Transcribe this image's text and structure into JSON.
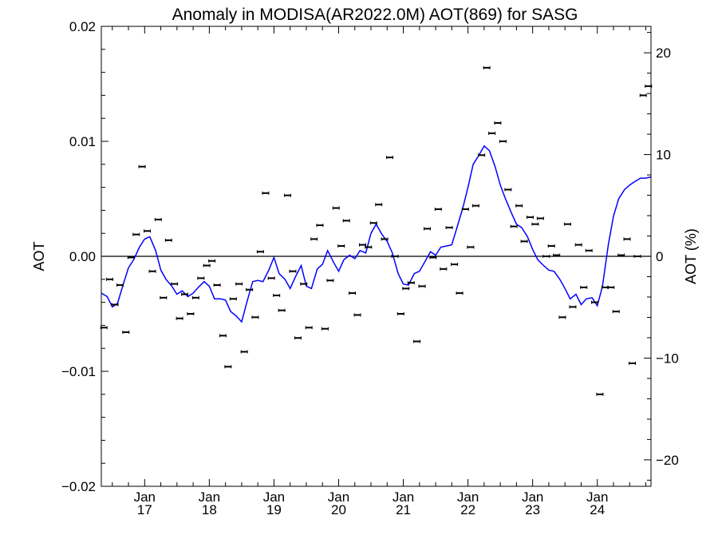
{
  "chart_data": {
    "type": "scatter",
    "title": "Anomaly in MODISA(AR2022.0M) AOT(869) for SASG",
    "ylabel": "AOT",
    "y2label": "AOT (%)",
    "xlabel": "",
    "ylim": [
      -0.02,
      0.02
    ],
    "y2lim": [
      -22.6,
      22.6
    ],
    "xlim": [
      2016.33,
      2024.83
    ],
    "grid": false,
    "yticks": [
      {
        "value": -0.02,
        "label": "−0.02"
      },
      {
        "value": -0.01,
        "label": "−0.01"
      },
      {
        "value": 0.0,
        "label": "0.00"
      },
      {
        "value": 0.01,
        "label": "0.01"
      },
      {
        "value": 0.02,
        "label": "0.02"
      }
    ],
    "y2ticks": [
      {
        "value": -20,
        "label": "−20"
      },
      {
        "value": -10,
        "label": "−10"
      },
      {
        "value": 0,
        "label": "0"
      },
      {
        "value": 10,
        "label": "10"
      },
      {
        "value": 20,
        "label": "20"
      }
    ],
    "xticks": [
      {
        "value": 2017,
        "month": "Jan",
        "year": "17"
      },
      {
        "value": 2018,
        "month": "Jan",
        "year": "18"
      },
      {
        "value": 2019,
        "month": "Jan",
        "year": "19"
      },
      {
        "value": 2020,
        "month": "Jan",
        "year": "20"
      },
      {
        "value": 2021,
        "month": "Jan",
        "year": "21"
      },
      {
        "value": 2022,
        "month": "Jan",
        "year": "22"
      },
      {
        "value": 2023,
        "month": "Jan",
        "year": "23"
      },
      {
        "value": 2024,
        "month": "Jan",
        "year": "24"
      }
    ],
    "series": [
      {
        "kind": "monthly-points",
        "color": "#000000",
        "x": [
          2016.37,
          2016.46,
          2016.54,
          2016.62,
          2016.71,
          2016.79,
          2016.87,
          2016.96,
          2017.04,
          2017.12,
          2017.21,
          2017.29,
          2017.37,
          2017.46,
          2017.54,
          2017.62,
          2017.71,
          2017.79,
          2017.87,
          2017.96,
          2018.04,
          2018.12,
          2018.21,
          2018.29,
          2018.37,
          2018.46,
          2018.54,
          2018.62,
          2018.71,
          2018.79,
          2018.87,
          2018.96,
          2019.04,
          2019.12,
          2019.21,
          2019.29,
          2019.37,
          2019.46,
          2019.54,
          2019.62,
          2019.71,
          2019.79,
          2019.87,
          2019.96,
          2020.04,
          2020.12,
          2020.21,
          2020.29,
          2020.37,
          2020.46,
          2020.54,
          2020.62,
          2020.71,
          2020.79,
          2020.87,
          2020.96,
          2021.04,
          2021.12,
          2021.21,
          2021.29,
          2021.37,
          2021.46,
          2021.54,
          2021.62,
          2021.71,
          2021.79,
          2021.87,
          2021.96,
          2022.04,
          2022.12,
          2022.21,
          2022.29,
          2022.37,
          2022.46,
          2022.54,
          2022.62,
          2022.71,
          2022.79,
          2022.87,
          2022.96,
          2023.04,
          2023.12,
          2023.21,
          2023.29,
          2023.37,
          2023.46,
          2023.54,
          2023.62,
          2023.71,
          2023.79,
          2023.87,
          2023.96,
          2024.04,
          2024.12,
          2024.21,
          2024.29,
          2024.37,
          2024.46,
          2024.54,
          2024.62,
          2024.71,
          2024.79
        ],
        "y": [
          -0.0062,
          -0.002,
          -0.0042,
          -0.0025,
          -0.0066,
          -0.0001,
          0.0019,
          0.0078,
          0.0022,
          -0.0013,
          0.0032,
          -0.0036,
          0.0014,
          -0.0024,
          -0.0054,
          -0.0033,
          -0.005,
          -0.0036,
          -0.0019,
          -0.0008,
          -0.0004,
          -0.0025,
          -0.0069,
          -0.0096,
          -0.0037,
          -0.0024,
          -0.0083,
          -0.0029,
          -0.0053,
          0.0004,
          0.0055,
          -0.0019,
          -0.0034,
          -0.0047,
          0.0053,
          -0.0013,
          -0.0071,
          -0.0024,
          -0.0062,
          0.0015,
          0.0027,
          -0.0063,
          -0.0021,
          0.0042,
          0.0009,
          0.0031,
          -0.0032,
          -0.0051,
          0.001,
          0.0008,
          0.0029,
          0.0045,
          0.0015,
          0.0086,
          0.0,
          -0.005,
          -0.0028,
          -0.0023,
          -0.0074,
          -0.0026,
          0.0024,
          -0.0001,
          0.0041,
          -0.0011,
          0.0025,
          -0.0007,
          -0.0032,
          0.0041,
          0.0008,
          0.0044,
          0.0088,
          0.0164,
          0.0107,
          0.0116,
          0.01,
          0.0058,
          0.0026,
          0.0044,
          0.0013,
          0.0034,
          0.0028,
          0.0033,
          0.0,
          0.0009,
          0.0001,
          -0.0053,
          0.0028,
          -0.0044,
          0.001,
          -0.0027,
          0.0005,
          -0.004,
          -0.012,
          -0.0027,
          -0.0027,
          -0.0048,
          0.0001,
          0.0015,
          -0.0093,
          0.0,
          0.014,
          0.0148
        ]
      },
      {
        "kind": "smoothed-line",
        "color": "#0000ff",
        "x": [
          2016.33,
          2016.42,
          2016.5,
          2016.58,
          2016.67,
          2016.75,
          2016.83,
          2016.92,
          2017.0,
          2017.08,
          2017.17,
          2017.25,
          2017.33,
          2017.42,
          2017.5,
          2017.58,
          2017.67,
          2017.75,
          2017.83,
          2017.92,
          2018.0,
          2018.08,
          2018.17,
          2018.25,
          2018.33,
          2018.42,
          2018.5,
          2018.58,
          2018.67,
          2018.75,
          2018.83,
          2018.92,
          2019.0,
          2019.08,
          2019.17,
          2019.25,
          2019.33,
          2019.42,
          2019.5,
          2019.58,
          2019.67,
          2019.75,
          2019.83,
          2019.92,
          2020.0,
          2020.08,
          2020.17,
          2020.25,
          2020.33,
          2020.42,
          2020.5,
          2020.58,
          2020.67,
          2020.75,
          2020.83,
          2020.92,
          2021.0,
          2021.08,
          2021.17,
          2021.25,
          2021.33,
          2021.42,
          2021.5,
          2021.58,
          2021.67,
          2021.75,
          2021.83,
          2021.92,
          2022.0,
          2022.08,
          2022.17,
          2022.25,
          2022.33,
          2022.42,
          2022.5,
          2022.58,
          2022.67,
          2022.75,
          2022.83,
          2022.92,
          2023.0,
          2023.08,
          2023.17,
          2023.25,
          2023.33,
          2023.42,
          2023.5,
          2023.58,
          2023.67,
          2023.75,
          2023.83,
          2023.92,
          2024.0,
          2024.08,
          2024.17,
          2024.25,
          2024.33,
          2024.42,
          2024.5,
          2024.58,
          2024.67,
          2024.75,
          2024.83
        ],
        "y": [
          -0.0032,
          -0.0035,
          -0.0044,
          -0.0041,
          -0.0024,
          -0.001,
          -0.0003,
          0.0008,
          0.0015,
          0.0017,
          0.0005,
          -0.0012,
          -0.002,
          -0.0026,
          -0.0033,
          -0.003,
          -0.0035,
          -0.0032,
          -0.0027,
          -0.0022,
          -0.0026,
          -0.0037,
          -0.0037,
          -0.0038,
          -0.0048,
          -0.0052,
          -0.0057,
          -0.004,
          -0.0022,
          -0.0021,
          -0.0022,
          -0.0012,
          -0.0001,
          -0.0015,
          -0.002,
          -0.0028,
          -0.0018,
          -0.0008,
          -0.0026,
          -0.0028,
          -0.0011,
          -0.0007,
          0.0005,
          -0.0005,
          -0.0013,
          -0.0003,
          0.0001,
          -0.0002,
          0.0005,
          0.0003,
          0.002,
          0.0028,
          0.0019,
          0.0013,
          0.0003,
          -0.0015,
          -0.0024,
          -0.0025,
          -0.0015,
          -0.0013,
          -0.0005,
          0.0004,
          0.0001,
          0.0008,
          0.0009,
          0.001,
          0.0025,
          0.0042,
          0.006,
          0.008,
          0.0088,
          0.0096,
          0.0092,
          0.0078,
          0.0062,
          0.005,
          0.0038,
          0.0028,
          0.0025,
          0.0017,
          0.0006,
          -0.0003,
          -0.0008,
          -0.0012,
          -0.0013,
          -0.002,
          -0.0028,
          -0.0037,
          -0.0033,
          -0.0042,
          -0.0037,
          -0.0036,
          -0.0043,
          -0.0026,
          0.001,
          0.0035,
          0.005,
          0.0058,
          0.0062,
          0.0065,
          0.0068,
          0.0068,
          0.0069
        ]
      }
    ]
  }
}
